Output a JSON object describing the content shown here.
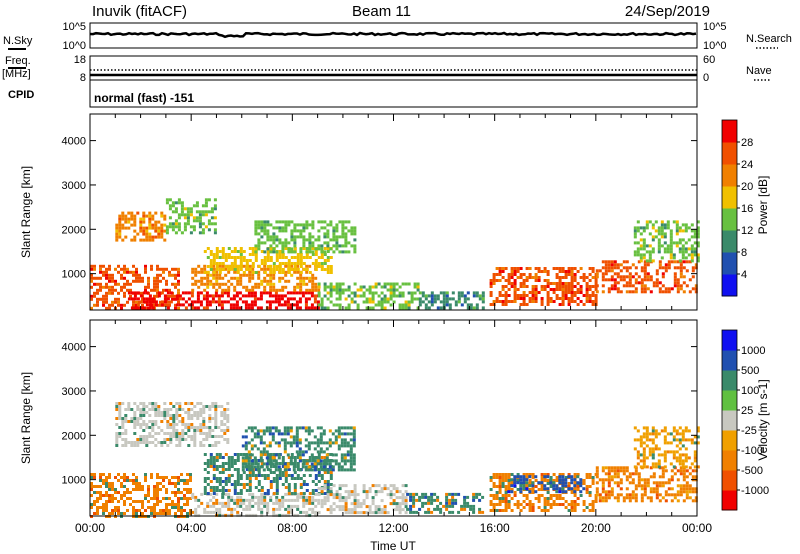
{
  "header": {
    "site": "Inuvik (fitACF)",
    "beam": "Beam 11",
    "date": "24/Sep/2019"
  },
  "panels": {
    "nsky_label": "N.Sky",
    "nsky_top": "10^5",
    "nsky_bottom": "10^0",
    "nsearch_label": "N.Search",
    "nsearch_top": "10^5",
    "nsearch_bottom": "10^0",
    "freq_label_1": "Freq.",
    "freq_label_2": "[MHz]",
    "freq_top": "18",
    "freq_bottom": "8",
    "nave_label": "Nave",
    "nave_top": "60",
    "nave_bottom": "0",
    "cpid_label": "CPID",
    "cpid_text": "normal (fast) -151"
  },
  "colors": {
    "power_scale": [
      "#1010f0",
      "#2050b0",
      "#3a8a6a",
      "#68c040",
      "#f0c000",
      "#f08000",
      "#f05000",
      "#f00000"
    ],
    "velocity_scale": [
      "#f00000",
      "#f05000",
      "#f08000",
      "#f0a000",
      "#c8c8c0",
      "#60c040",
      "#3a8a6a",
      "#2050b0",
      "#1010f0"
    ]
  },
  "chart_data": [
    {
      "type": "heatmap",
      "name_ref": "power",
      "ylabel": "Slant Range [km]",
      "yticks": [
        "1000",
        "2000",
        "3000",
        "4000"
      ],
      "ylim": [
        180,
        4600
      ],
      "xlim": [
        0,
        24
      ],
      "colorbar_label": "Power [dB]",
      "colorbar_ticks": [
        "4",
        "8",
        "12",
        "16",
        "20",
        "24",
        "28"
      ],
      "colorbar_range": [
        0,
        32
      ],
      "regions": [
        {
          "x0": 0.0,
          "x1": 3.5,
          "y0": 200,
          "y1": 1200,
          "v": 27
        },
        {
          "x0": 1.5,
          "x1": 9.0,
          "y0": 200,
          "y1": 600,
          "v": 28
        },
        {
          "x0": 4.0,
          "x1": 9.0,
          "y0": 600,
          "y1": 1200,
          "v": 20
        },
        {
          "x0": 9.0,
          "x1": 13.0,
          "y0": 250,
          "y1": 800,
          "v": 13
        },
        {
          "x0": 13.0,
          "x1": 15.5,
          "y0": 250,
          "y1": 600,
          "v": 9
        },
        {
          "x0": 15.8,
          "x1": 20.0,
          "y0": 300,
          "y1": 1150,
          "v": 27
        },
        {
          "x0": 20.0,
          "x1": 24.0,
          "y0": 600,
          "y1": 1300,
          "v": 26
        },
        {
          "x0": 1.0,
          "x1": 3.0,
          "y0": 1750,
          "y1": 2400,
          "v": 22
        },
        {
          "x0": 3.0,
          "x1": 5.0,
          "y0": 1900,
          "y1": 2700,
          "v": 15
        },
        {
          "x0": 4.5,
          "x1": 9.5,
          "y0": 1000,
          "y1": 1600,
          "v": 16
        },
        {
          "x0": 6.5,
          "x1": 10.5,
          "y0": 1500,
          "y1": 2200,
          "v": 12
        },
        {
          "x0": 21.5,
          "x1": 24.0,
          "y0": 1300,
          "y1": 2200,
          "v": 15
        }
      ]
    },
    {
      "type": "heatmap",
      "name_ref": "velocity",
      "xlabel": "Time UT",
      "ylabel": "Slant Range [km]",
      "xticks": [
        "00:00",
        "04:00",
        "08:00",
        "12:00",
        "16:00",
        "20:00",
        "00:00"
      ],
      "yticks": [
        "1000",
        "2000",
        "3000",
        "4000"
      ],
      "ylim": [
        180,
        4600
      ],
      "xlim": [
        0,
        24
      ],
      "colorbar_label": "Velocity [m s-1]",
      "colorbar_ticks": [
        "-1000",
        "-500",
        "-100",
        "-25",
        "25",
        "100",
        "500",
        "1000"
      ],
      "colorbar_range": [
        -1500,
        1500
      ],
      "regions": [
        {
          "x0": 0.0,
          "x1": 4.0,
          "y0": 200,
          "y1": 1150,
          "v": -150
        },
        {
          "x0": 4.0,
          "x1": 9.0,
          "y0": 200,
          "y1": 700,
          "v": 0
        },
        {
          "x0": 4.5,
          "x1": 9.5,
          "y0": 700,
          "y1": 1600,
          "v": 200
        },
        {
          "x0": 9.0,
          "x1": 12.5,
          "y0": 250,
          "y1": 900,
          "v": 0
        },
        {
          "x0": 12.5,
          "x1": 15.5,
          "y0": 250,
          "y1": 700,
          "v": 150
        },
        {
          "x0": 15.8,
          "x1": 20.0,
          "y0": 300,
          "y1": 1150,
          "v": -200
        },
        {
          "x0": 16.5,
          "x1": 19.5,
          "y0": 700,
          "y1": 1100,
          "v": 700
        },
        {
          "x0": 20.0,
          "x1": 24.0,
          "y0": 500,
          "y1": 1300,
          "v": -400
        },
        {
          "x0": 1.0,
          "x1": 5.5,
          "y0": 1750,
          "y1": 2750,
          "v": 0
        },
        {
          "x0": 6.0,
          "x1": 10.5,
          "y0": 1200,
          "y1": 2200,
          "v": 300
        },
        {
          "x0": 21.5,
          "x1": 24.0,
          "y0": 1300,
          "y1": 2200,
          "v": -80
        }
      ]
    }
  ]
}
